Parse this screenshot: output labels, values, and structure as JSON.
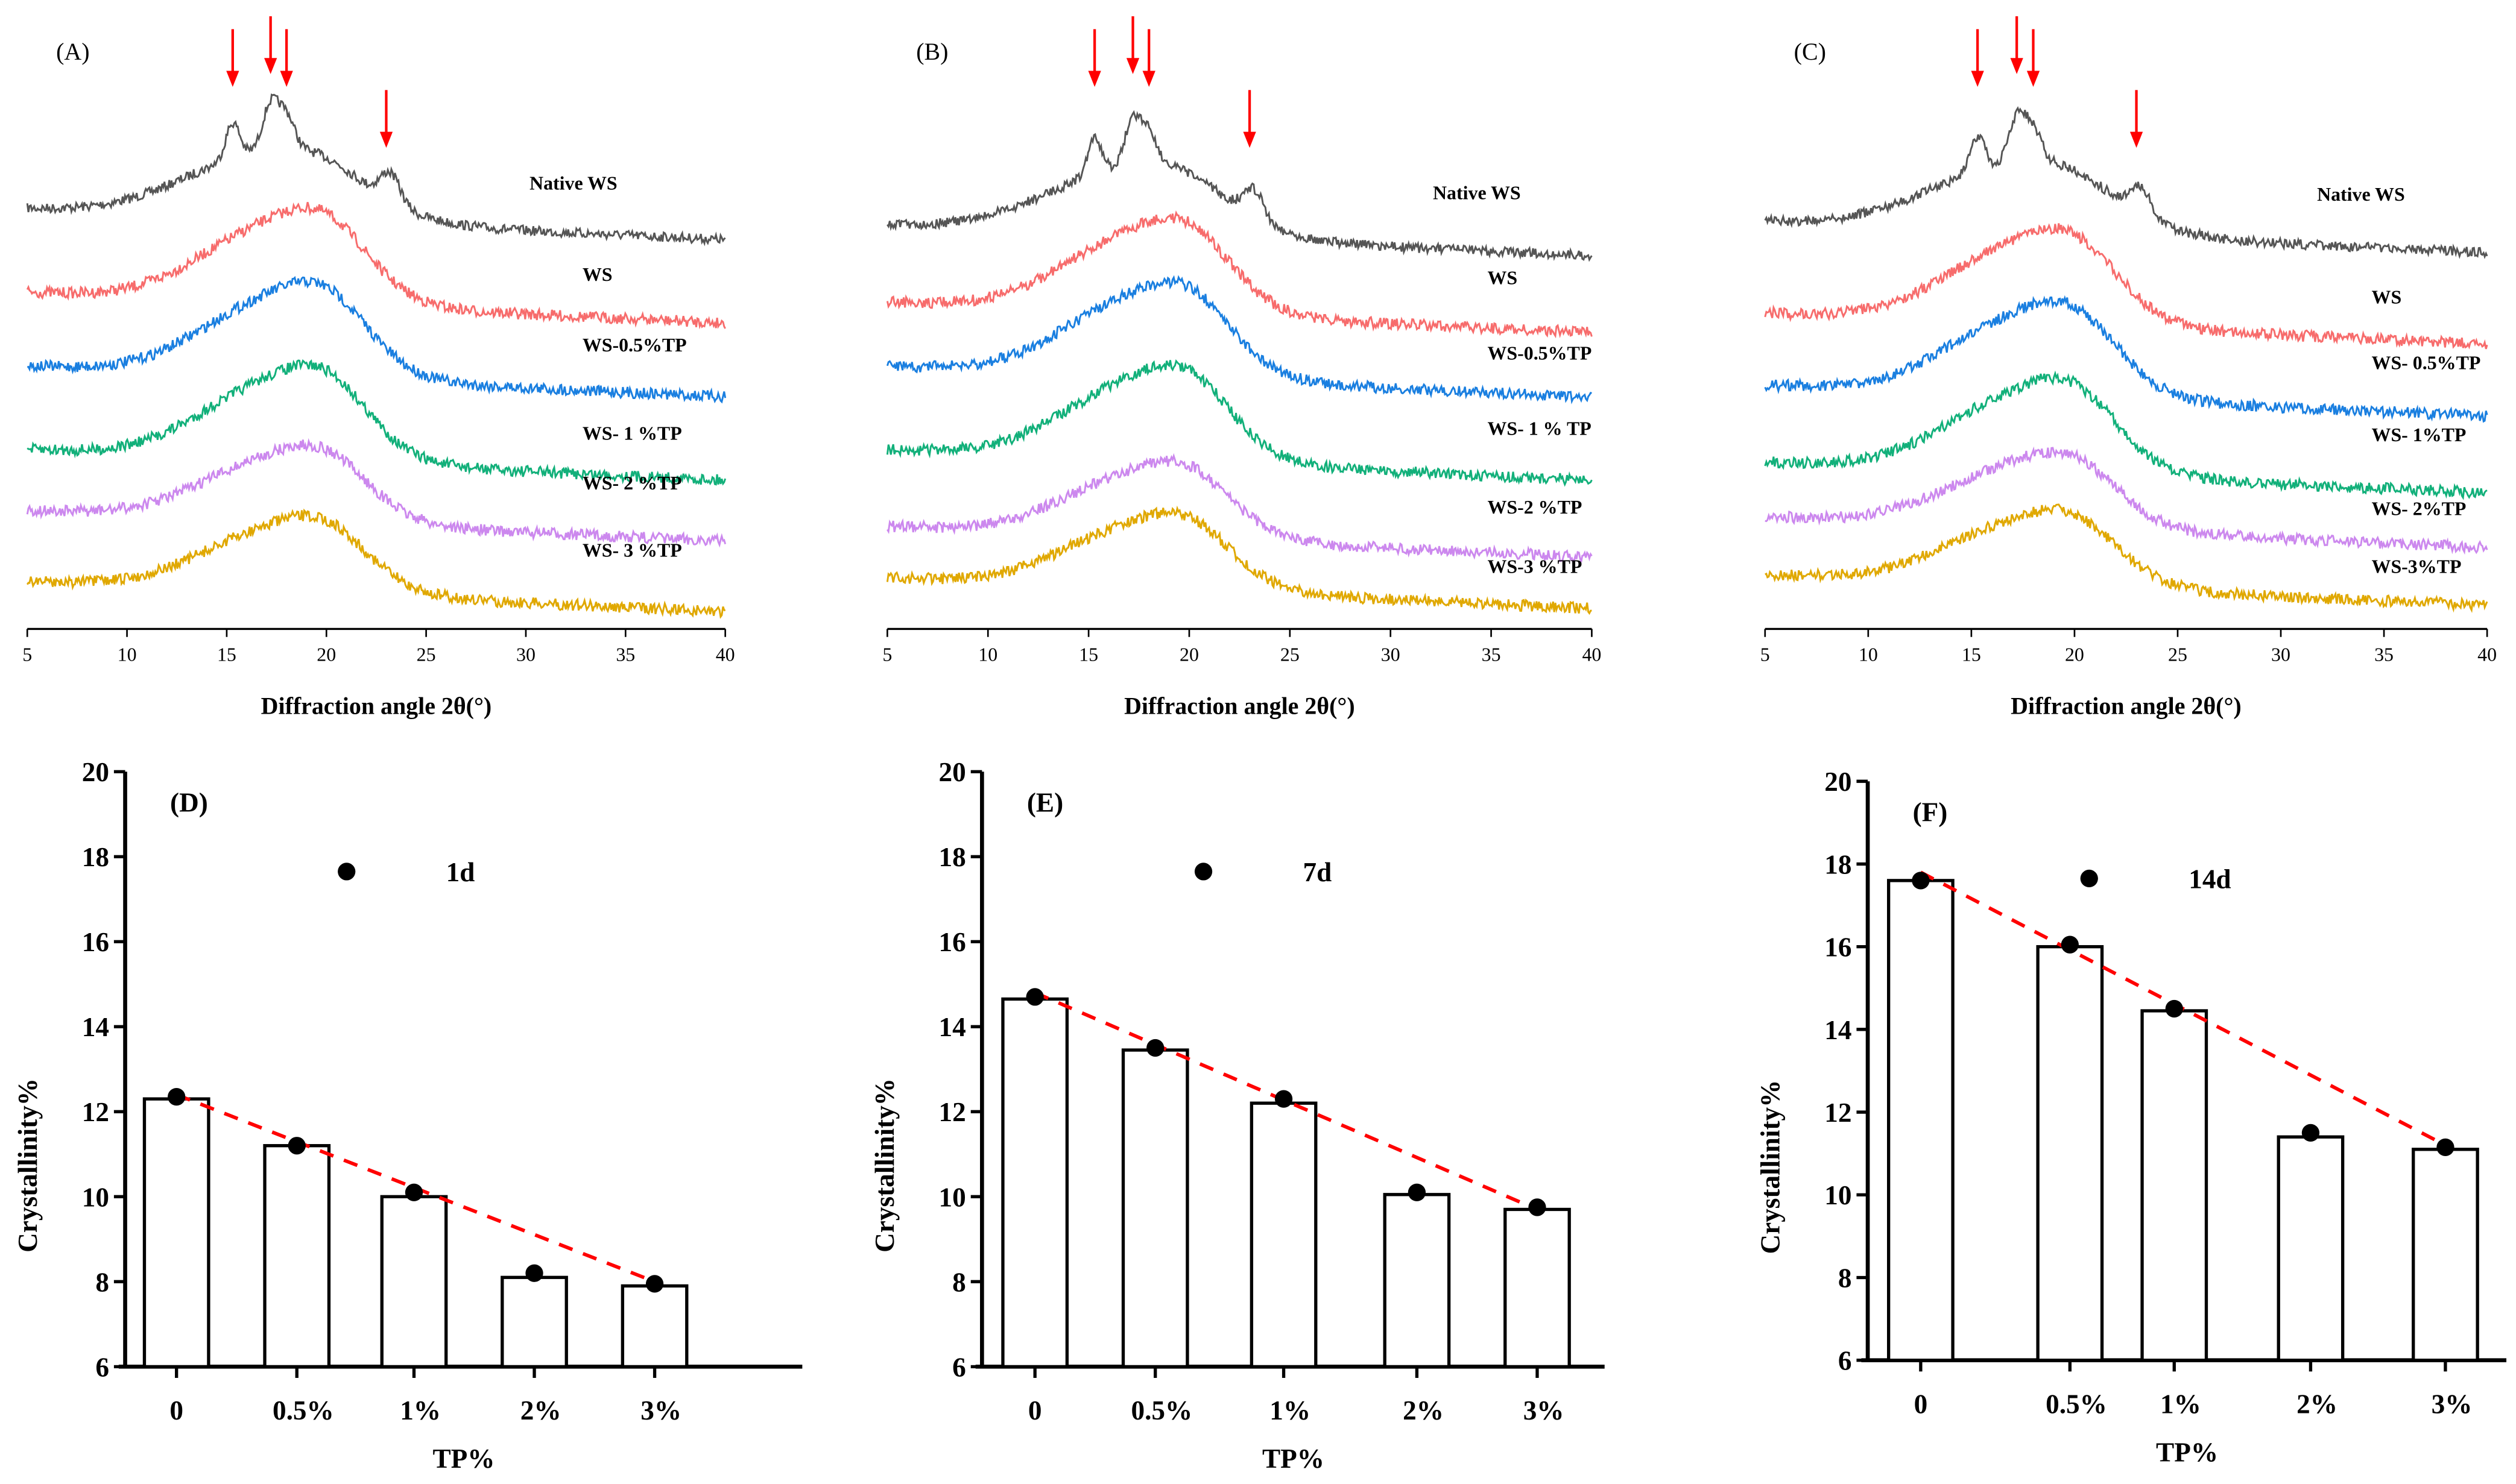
{
  "chart_data": [
    {
      "type": "line",
      "panel": "(A)",
      "xlabel": "Diffraction angle 2θ(°)",
      "xlim": [
        5,
        40
      ],
      "xticks": [
        "5",
        "10",
        "15",
        "20",
        "25",
        "30",
        "35",
        "40"
      ],
      "series": [
        {
          "name": "Native WS",
          "color": "#555555"
        },
        {
          "name": "WS",
          "color": "#f76c6c"
        },
        {
          "name": "WS-0.5%TP",
          "color": "#1a7fe0"
        },
        {
          "name": "WS- 1 %TP",
          "color": "#12b07a"
        },
        {
          "name": "WS- 2 %TP",
          "color": "#cc88ee"
        },
        {
          "name": "WS- 3 %TP",
          "color": "#e0a800"
        }
      ],
      "peak_arrows_2theta": [
        15.3,
        17.2,
        18.0,
        23.0
      ]
    },
    {
      "type": "line",
      "panel": "(B)",
      "xlabel": "Diffraction angle 2θ(°)",
      "xlim": [
        5,
        40
      ],
      "xticks": [
        "5",
        "10",
        "15",
        "20",
        "25",
        "30",
        "35",
        "40"
      ],
      "series": [
        {
          "name": "Native  WS",
          "color": "#555555"
        },
        {
          "name": "WS",
          "color": "#f76c6c"
        },
        {
          "name": "WS-0.5%TP",
          "color": "#1a7fe0"
        },
        {
          "name": "WS- 1 % TP",
          "color": "#12b07a"
        },
        {
          "name": "WS-2 %TP",
          "color": "#cc88ee"
        },
        {
          "name": "WS-3 %TP",
          "color": "#e0a800"
        }
      ],
      "peak_arrows_2theta": [
        15.3,
        17.2,
        18.0,
        23.0
      ]
    },
    {
      "type": "line",
      "panel": "(C)",
      "xlabel": "Diffraction angle 2θ(°)",
      "xlim": [
        5,
        40
      ],
      "xticks": [
        "5",
        "10",
        "15",
        "20",
        "25",
        "30",
        "35",
        "40"
      ],
      "series": [
        {
          "name": "Native WS",
          "color": "#555555"
        },
        {
          "name": "WS",
          "color": "#f76c6c"
        },
        {
          "name": "WS- 0.5%TP",
          "color": "#1a7fe0"
        },
        {
          "name": "WS- 1%TP",
          "color": "#12b07a"
        },
        {
          "name": "WS- 2%TP",
          "color": "#cc88ee"
        },
        {
          "name": "WS-3%TP",
          "color": "#e0a800"
        }
      ],
      "peak_arrows_2theta": [
        15.3,
        17.2,
        18.0,
        23.0
      ]
    },
    {
      "type": "bar",
      "panel": "(D)",
      "legend": "1d",
      "xlabel": "TP%",
      "ylabel": "Crystallinity%",
      "ylim": [
        6,
        20
      ],
      "yticks": [
        "6",
        "8",
        "10",
        "12",
        "14",
        "16",
        "18",
        "20"
      ],
      "categories": [
        "0",
        "0.5%",
        "1%",
        "2%",
        "3%"
      ],
      "values": [
        12.3,
        11.2,
        10.0,
        8.1,
        7.9
      ],
      "points": [
        12.35,
        11.2,
        10.1,
        8.2,
        7.95
      ],
      "trend": [
        12.4,
        8.0
      ]
    },
    {
      "type": "bar",
      "panel": "(E)",
      "legend": "7d",
      "xlabel": "TP%",
      "ylabel": "Crystallinity%",
      "ylim": [
        6,
        20
      ],
      "yticks": [
        "6",
        "8",
        "10",
        "12",
        "14",
        "16",
        "18",
        "20"
      ],
      "categories": [
        "0",
        "0.5%",
        "1%",
        "2%",
        "3%"
      ],
      "values": [
        14.65,
        13.45,
        12.2,
        10.05,
        9.7
      ],
      "points": [
        14.7,
        13.5,
        12.3,
        10.1,
        9.75
      ],
      "trend": [
        14.8,
        9.7
      ]
    },
    {
      "type": "bar",
      "panel": "(F)",
      "legend": "14d",
      "xlabel": "TP%",
      "ylabel": "Crystallinity%",
      "ylim": [
        6,
        20
      ],
      "yticks": [
        "6",
        "8",
        "10",
        "12",
        "14",
        "16",
        "18",
        "20"
      ],
      "categories": [
        "0",
        "0.5%",
        "1%",
        "2%",
        "3%"
      ],
      "values": [
        17.6,
        16.0,
        14.45,
        11.4,
        11.1
      ],
      "points": [
        17.6,
        16.05,
        14.5,
        11.5,
        11.15
      ],
      "trend": [
        17.8,
        11.2
      ]
    }
  ]
}
